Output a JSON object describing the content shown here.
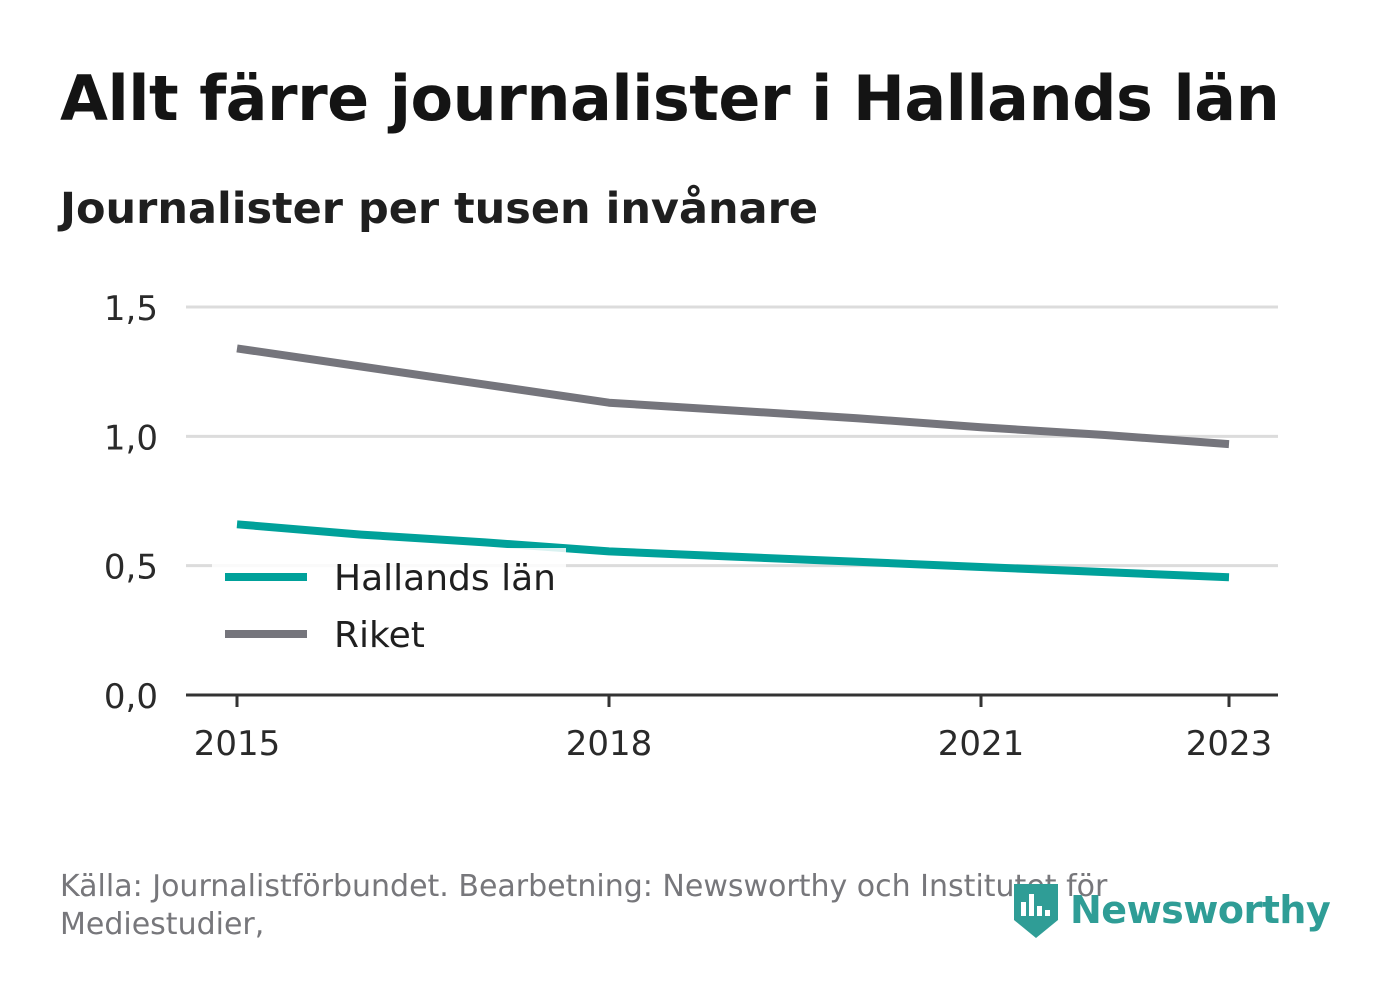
{
  "header": {
    "title": "Allt färre journalister i Hallands län",
    "subtitle": "Journalister per tusen invånare"
  },
  "chart_data": {
    "type": "line",
    "x": [
      2015,
      2016,
      2017,
      2018,
      2019,
      2020,
      2021,
      2022,
      2023
    ],
    "x_ticks": [
      2015,
      2018,
      2021,
      2023
    ],
    "y_ticks": [
      0,
      0.5,
      1.0,
      1.5
    ],
    "y_tick_labels": [
      "0,0",
      "0,5",
      "1,0",
      "1,5"
    ],
    "ylim": [
      0,
      1.5
    ],
    "grid": true,
    "legend_position": "lower-left",
    "series": [
      {
        "name": "Hallands län",
        "color": "#00a19a",
        "values": [
          0.66,
          0.62,
          0.59,
          0.555,
          0.535,
          0.515,
          0.495,
          0.475,
          0.455
        ]
      },
      {
        "name": "Riket",
        "color": "#75757c",
        "values": [
          1.34,
          1.27,
          1.2,
          1.13,
          1.1,
          1.07,
          1.035,
          1.005,
          0.97
        ]
      }
    ]
  },
  "footer": {
    "source": "Källa: Journalistförbundet. Bearbetning: Newsworthy och Institutet för Mediestudier,",
    "brand": "Newsworthy",
    "brand_color": "#2f9d96"
  }
}
